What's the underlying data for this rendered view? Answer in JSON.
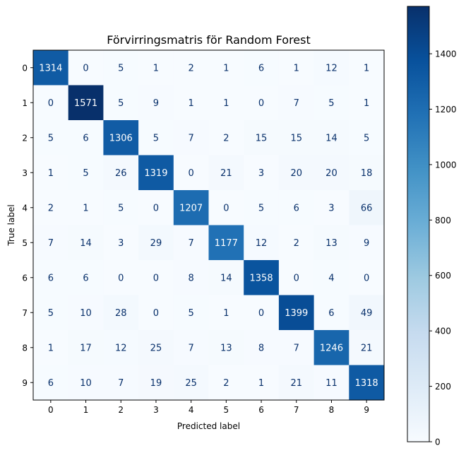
{
  "chart_data": {
    "type": "heatmap",
    "title": "Förvirringsmatris för Random Forest",
    "xlabel": "Predicted label",
    "ylabel": "True label",
    "x_ticks": [
      "0",
      "1",
      "2",
      "3",
      "4",
      "5",
      "6",
      "7",
      "8",
      "9"
    ],
    "y_ticks": [
      "0",
      "1",
      "2",
      "3",
      "4",
      "5",
      "6",
      "7",
      "8",
      "9"
    ],
    "matrix": [
      [
        1314,
        0,
        5,
        1,
        2,
        1,
        6,
        1,
        12,
        1
      ],
      [
        0,
        1571,
        5,
        9,
        1,
        1,
        0,
        7,
        5,
        1
      ],
      [
        5,
        6,
        1306,
        5,
        7,
        2,
        15,
        15,
        14,
        5
      ],
      [
        1,
        5,
        26,
        1319,
        0,
        21,
        3,
        20,
        20,
        18
      ],
      [
        2,
        1,
        5,
        0,
        1207,
        0,
        5,
        6,
        3,
        66
      ],
      [
        7,
        14,
        3,
        29,
        7,
        1177,
        12,
        2,
        13,
        9
      ],
      [
        6,
        6,
        0,
        0,
        8,
        14,
        1358,
        0,
        4,
        0
      ],
      [
        5,
        10,
        28,
        0,
        5,
        1,
        0,
        1399,
        6,
        49
      ],
      [
        1,
        17,
        12,
        25,
        7,
        13,
        8,
        7,
        1246,
        21
      ],
      [
        6,
        10,
        7,
        19,
        25,
        2,
        1,
        21,
        11,
        1318
      ]
    ],
    "colorbar": {
      "ticks": [
        "0",
        "200",
        "400",
        "600",
        "800",
        "1000",
        "1200",
        "1400"
      ],
      "vmin": 0,
      "vmax": 1571,
      "colormap": "Blues"
    }
  }
}
